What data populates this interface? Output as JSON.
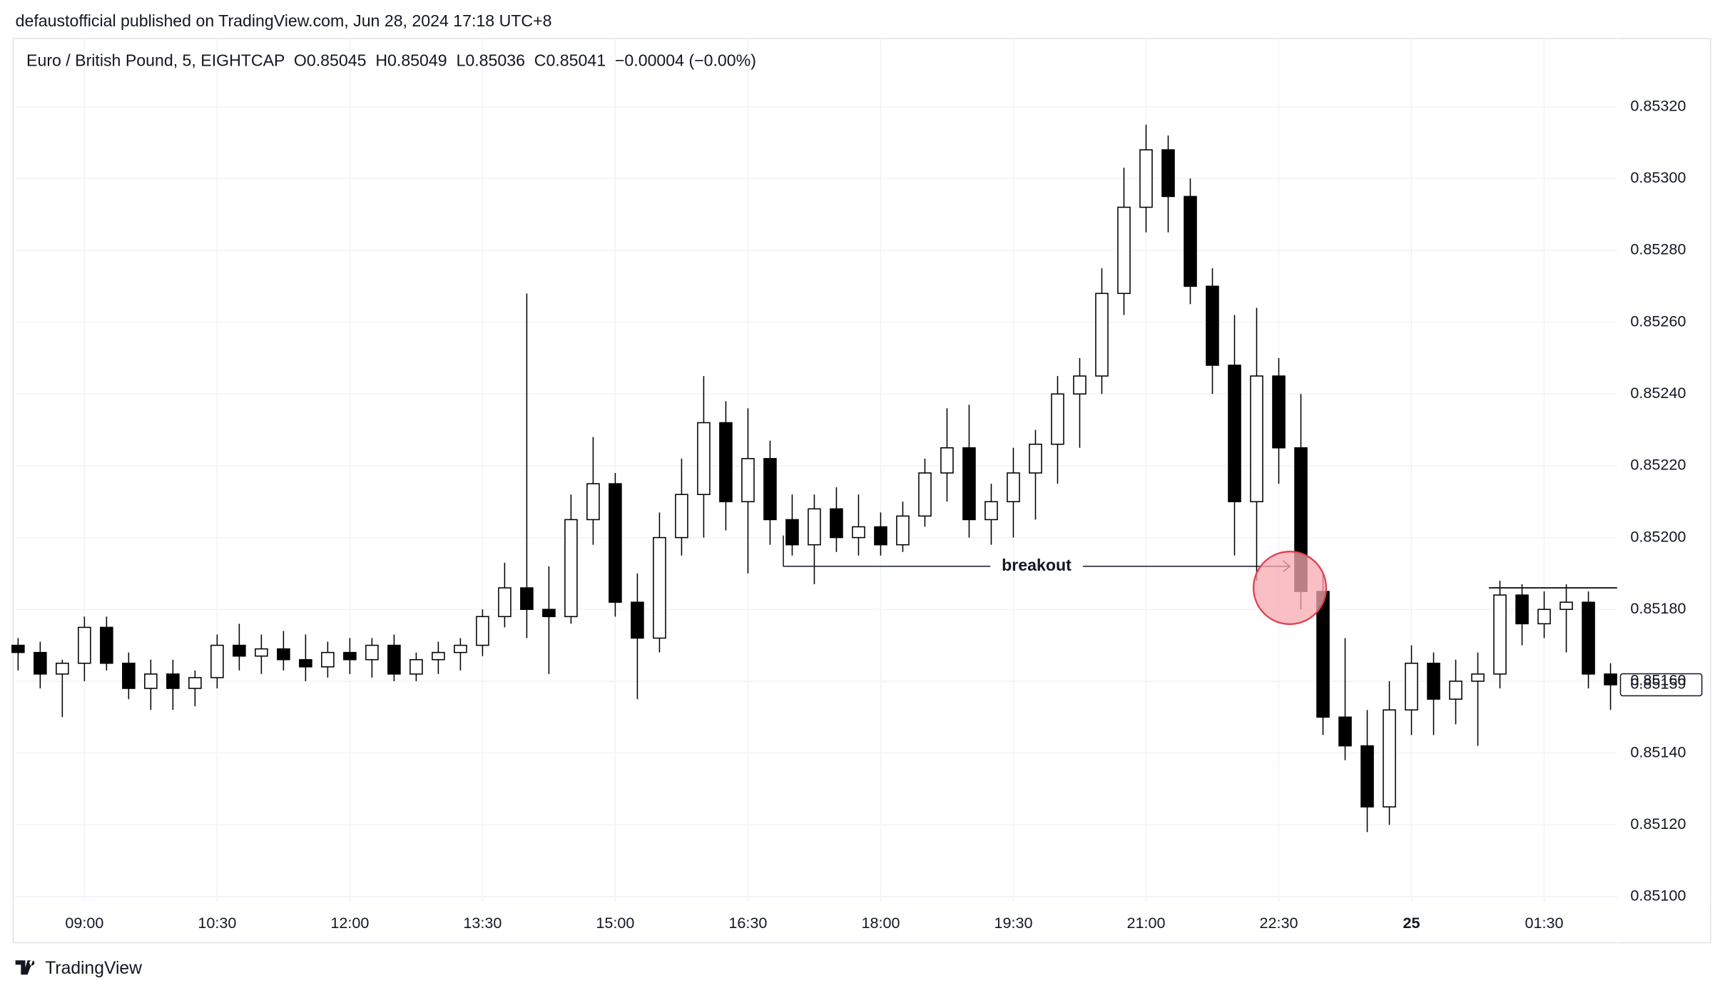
{
  "header": {
    "text": "defaustofficial published on TradingView.com, Jun 28, 2024 17:18 UTC+8"
  },
  "footer": {
    "brand": "TradingView"
  },
  "chart_data": {
    "type": "candlestick",
    "title": "Euro / British Pound, 5, EIGHTCAP  O0.85045  H0.85049  L0.85036  C0.85041  −0.00004 (−0.00%)",
    "up_color": "#ffffff",
    "down_color": "#000000",
    "outline_color": "#000000",
    "open": [
      0.8517,
      0.85168,
      0.85162,
      0.85165,
      0.85175,
      0.85165,
      0.85158,
      0.85162,
      0.85158,
      0.85161,
      0.8517,
      0.85167,
      0.85169,
      0.85166,
      0.85164,
      0.85168,
      0.85166,
      0.8517,
      0.85162,
      0.85166,
      0.85168,
      0.8517,
      0.85178,
      0.85186,
      0.8518,
      0.85178,
      0.85205,
      0.85215,
      0.85182,
      0.85172,
      0.852,
      0.85212,
      0.85232,
      0.8521,
      0.85222,
      0.85205,
      0.85198,
      0.85208,
      0.852,
      0.85203,
      0.85198,
      0.85206,
      0.85218,
      0.85225,
      0.85205,
      0.8521,
      0.85218,
      0.85226,
      0.8524,
      0.85245,
      0.85268,
      0.85292,
      0.85308,
      0.85295,
      0.8527,
      0.85248,
      0.8521,
      0.85245,
      0.85225,
      0.85185,
      0.8515,
      0.85142,
      0.85125,
      0.85152,
      0.85165,
      0.85155,
      0.8516,
      0.85162,
      0.85184,
      0.85176,
      0.8518,
      0.85182,
      0.85162
    ],
    "high": [
      0.85172,
      0.85171,
      0.85166,
      0.85178,
      0.85178,
      0.85168,
      0.85166,
      0.85166,
      0.85163,
      0.85173,
      0.85176,
      0.85173,
      0.85174,
      0.85173,
      0.85171,
      0.85172,
      0.85172,
      0.85173,
      0.85168,
      0.85171,
      0.85172,
      0.8518,
      0.85193,
      0.85268,
      0.85192,
      0.85212,
      0.85228,
      0.85218,
      0.8519,
      0.85207,
      0.85222,
      0.85245,
      0.85238,
      0.85236,
      0.85227,
      0.85212,
      0.85212,
      0.85214,
      0.85212,
      0.85207,
      0.8521,
      0.85222,
      0.85236,
      0.85237,
      0.85215,
      0.85225,
      0.8523,
      0.85245,
      0.8525,
      0.85275,
      0.85303,
      0.85315,
      0.85312,
      0.853,
      0.85275,
      0.85262,
      0.85264,
      0.8525,
      0.8524,
      0.8519,
      0.85172,
      0.85152,
      0.8516,
      0.8517,
      0.85168,
      0.85166,
      0.85168,
      0.85188,
      0.85187,
      0.85185,
      0.85187,
      0.85185,
      0.85165
    ],
    "low": [
      0.85163,
      0.85158,
      0.8515,
      0.8516,
      0.85163,
      0.85155,
      0.85152,
      0.85152,
      0.85153,
      0.85158,
      0.85163,
      0.85162,
      0.85163,
      0.8516,
      0.85161,
      0.85162,
      0.85161,
      0.8516,
      0.8516,
      0.85162,
      0.85163,
      0.85167,
      0.85175,
      0.85172,
      0.85162,
      0.85176,
      0.85198,
      0.85178,
      0.85155,
      0.85168,
      0.85195,
      0.852,
      0.85202,
      0.8519,
      0.85198,
      0.85195,
      0.85187,
      0.85196,
      0.85195,
      0.85195,
      0.85196,
      0.85203,
      0.8521,
      0.852,
      0.85198,
      0.852,
      0.85205,
      0.85215,
      0.85225,
      0.8524,
      0.85262,
      0.85285,
      0.85285,
      0.85265,
      0.8524,
      0.85195,
      0.85188,
      0.85215,
      0.8518,
      0.85145,
      0.85138,
      0.85118,
      0.8512,
      0.85145,
      0.85145,
      0.85148,
      0.85142,
      0.85158,
      0.8517,
      0.85172,
      0.85168,
      0.85158,
      0.85152
    ],
    "close": [
      0.85168,
      0.85162,
      0.85165,
      0.85175,
      0.85165,
      0.85158,
      0.85162,
      0.85158,
      0.85161,
      0.8517,
      0.85167,
      0.85169,
      0.85166,
      0.85164,
      0.85168,
      0.85166,
      0.8517,
      0.85162,
      0.85166,
      0.85168,
      0.8517,
      0.85178,
      0.85186,
      0.8518,
      0.85178,
      0.85205,
      0.85215,
      0.85182,
      0.85172,
      0.852,
      0.85212,
      0.85232,
      0.8521,
      0.85222,
      0.85205,
      0.85198,
      0.85208,
      0.852,
      0.85203,
      0.85198,
      0.85206,
      0.85218,
      0.85225,
      0.85205,
      0.8521,
      0.85218,
      0.85226,
      0.8524,
      0.85245,
      0.85268,
      0.85292,
      0.85308,
      0.85295,
      0.8527,
      0.85248,
      0.8521,
      0.85245,
      0.85225,
      0.85185,
      0.8515,
      0.85142,
      0.85125,
      0.85152,
      0.85165,
      0.85155,
      0.8516,
      0.85162,
      0.85184,
      0.85176,
      0.8518,
      0.85182,
      0.85162,
      0.85159
    ],
    "xlim": [
      -0.12,
      72.3
    ],
    "xticks": [
      {
        "value": 3,
        "label": "09:00"
      },
      {
        "value": 9,
        "label": "10:30"
      },
      {
        "value": 15,
        "label": "12:00"
      },
      {
        "value": 21,
        "label": "13:30"
      },
      {
        "value": 27,
        "label": "15:00"
      },
      {
        "value": 33,
        "label": "16:30"
      },
      {
        "value": 39,
        "label": "18:00"
      },
      {
        "value": 45,
        "label": "19:30"
      },
      {
        "value": 51,
        "label": "21:00"
      },
      {
        "value": 57,
        "label": "22:30"
      },
      {
        "value": 63,
        "label": "25",
        "bold": true
      },
      {
        "value": 69,
        "label": "01:30"
      }
    ],
    "ylim": [
      0.850985,
      0.85339
    ],
    "yticks": [
      {
        "value": 0.851,
        "label": "0.85100"
      },
      {
        "value": 0.8512,
        "label": "0.85120"
      },
      {
        "value": 0.8514,
        "label": "0.85140"
      },
      {
        "value": 0.8516,
        "label": "0.85160"
      },
      {
        "value": 0.8518,
        "label": "0.85180"
      },
      {
        "value": 0.852,
        "label": "0.85200"
      },
      {
        "value": 0.8522,
        "label": "0.85220"
      },
      {
        "value": 0.8524,
        "label": "0.85240"
      },
      {
        "value": 0.8526,
        "label": "0.85260"
      },
      {
        "value": 0.8528,
        "label": "0.85280"
      },
      {
        "value": 0.853,
        "label": "0.85300"
      },
      {
        "value": 0.8532,
        "label": "0.85320"
      }
    ],
    "grid": true,
    "last_price": 0.85159,
    "annotation": {
      "text": "breakout",
      "x": [
        34.6,
        57.5
      ],
      "y": 0.85192,
      "marker_y": 0.85186,
      "marker_color": "#f7a9b1"
    },
    "resistance": {
      "x": [
        66.5,
        72.3
      ],
      "y": 0.85186
    }
  }
}
